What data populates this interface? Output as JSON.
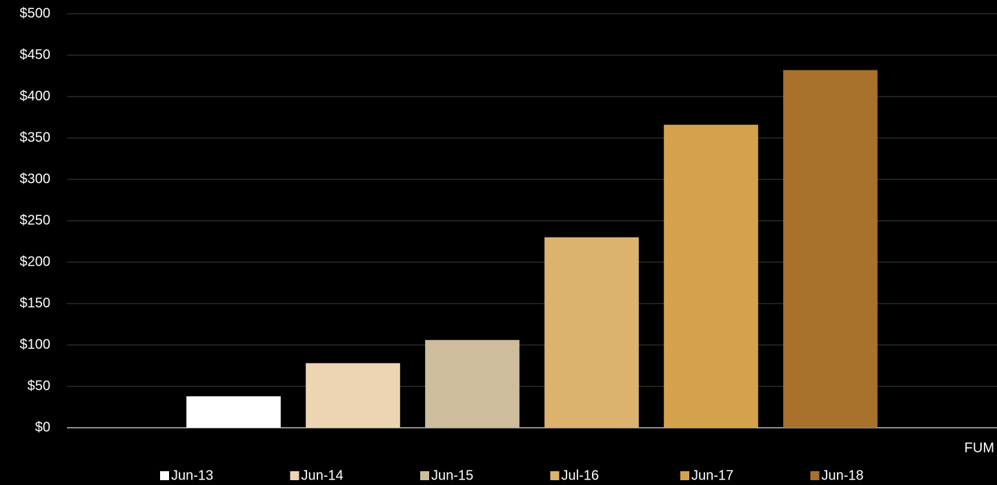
{
  "chart_data": {
    "type": "bar",
    "categories": [
      "FUM"
    ],
    "series": [
      {
        "name": "Jun-13",
        "color": "#ffffff",
        "values": [
          38
        ]
      },
      {
        "name": "Jun-14",
        "color": "#edd5b3",
        "values": [
          78
        ]
      },
      {
        "name": "Jun-15",
        "color": "#cdbd9c",
        "values": [
          106
        ]
      },
      {
        "name": "Jul-16",
        "color": "#dbb36f",
        "values": [
          230
        ]
      },
      {
        "name": "Jun-17",
        "color": "#d4a24c",
        "values": [
          366
        ]
      },
      {
        "name": "Jun-18",
        "color": "#a8712c",
        "values": [
          432
        ]
      }
    ],
    "ylim": [
      0,
      500
    ],
    "yticks": [
      {
        "value": 0,
        "label": "$0"
      },
      {
        "value": 50,
        "label": "$50"
      },
      {
        "value": 100,
        "label": "$100"
      },
      {
        "value": 150,
        "label": "$150"
      },
      {
        "value": 200,
        "label": "$200"
      },
      {
        "value": 250,
        "label": "$250"
      },
      {
        "value": 300,
        "label": "$300"
      },
      {
        "value": 350,
        "label": "$350"
      },
      {
        "value": 400,
        "label": "$400"
      },
      {
        "value": 450,
        "label": "$450"
      },
      {
        "value": 500,
        "label": "$500"
      }
    ],
    "grid": true,
    "legend": "bottom"
  }
}
